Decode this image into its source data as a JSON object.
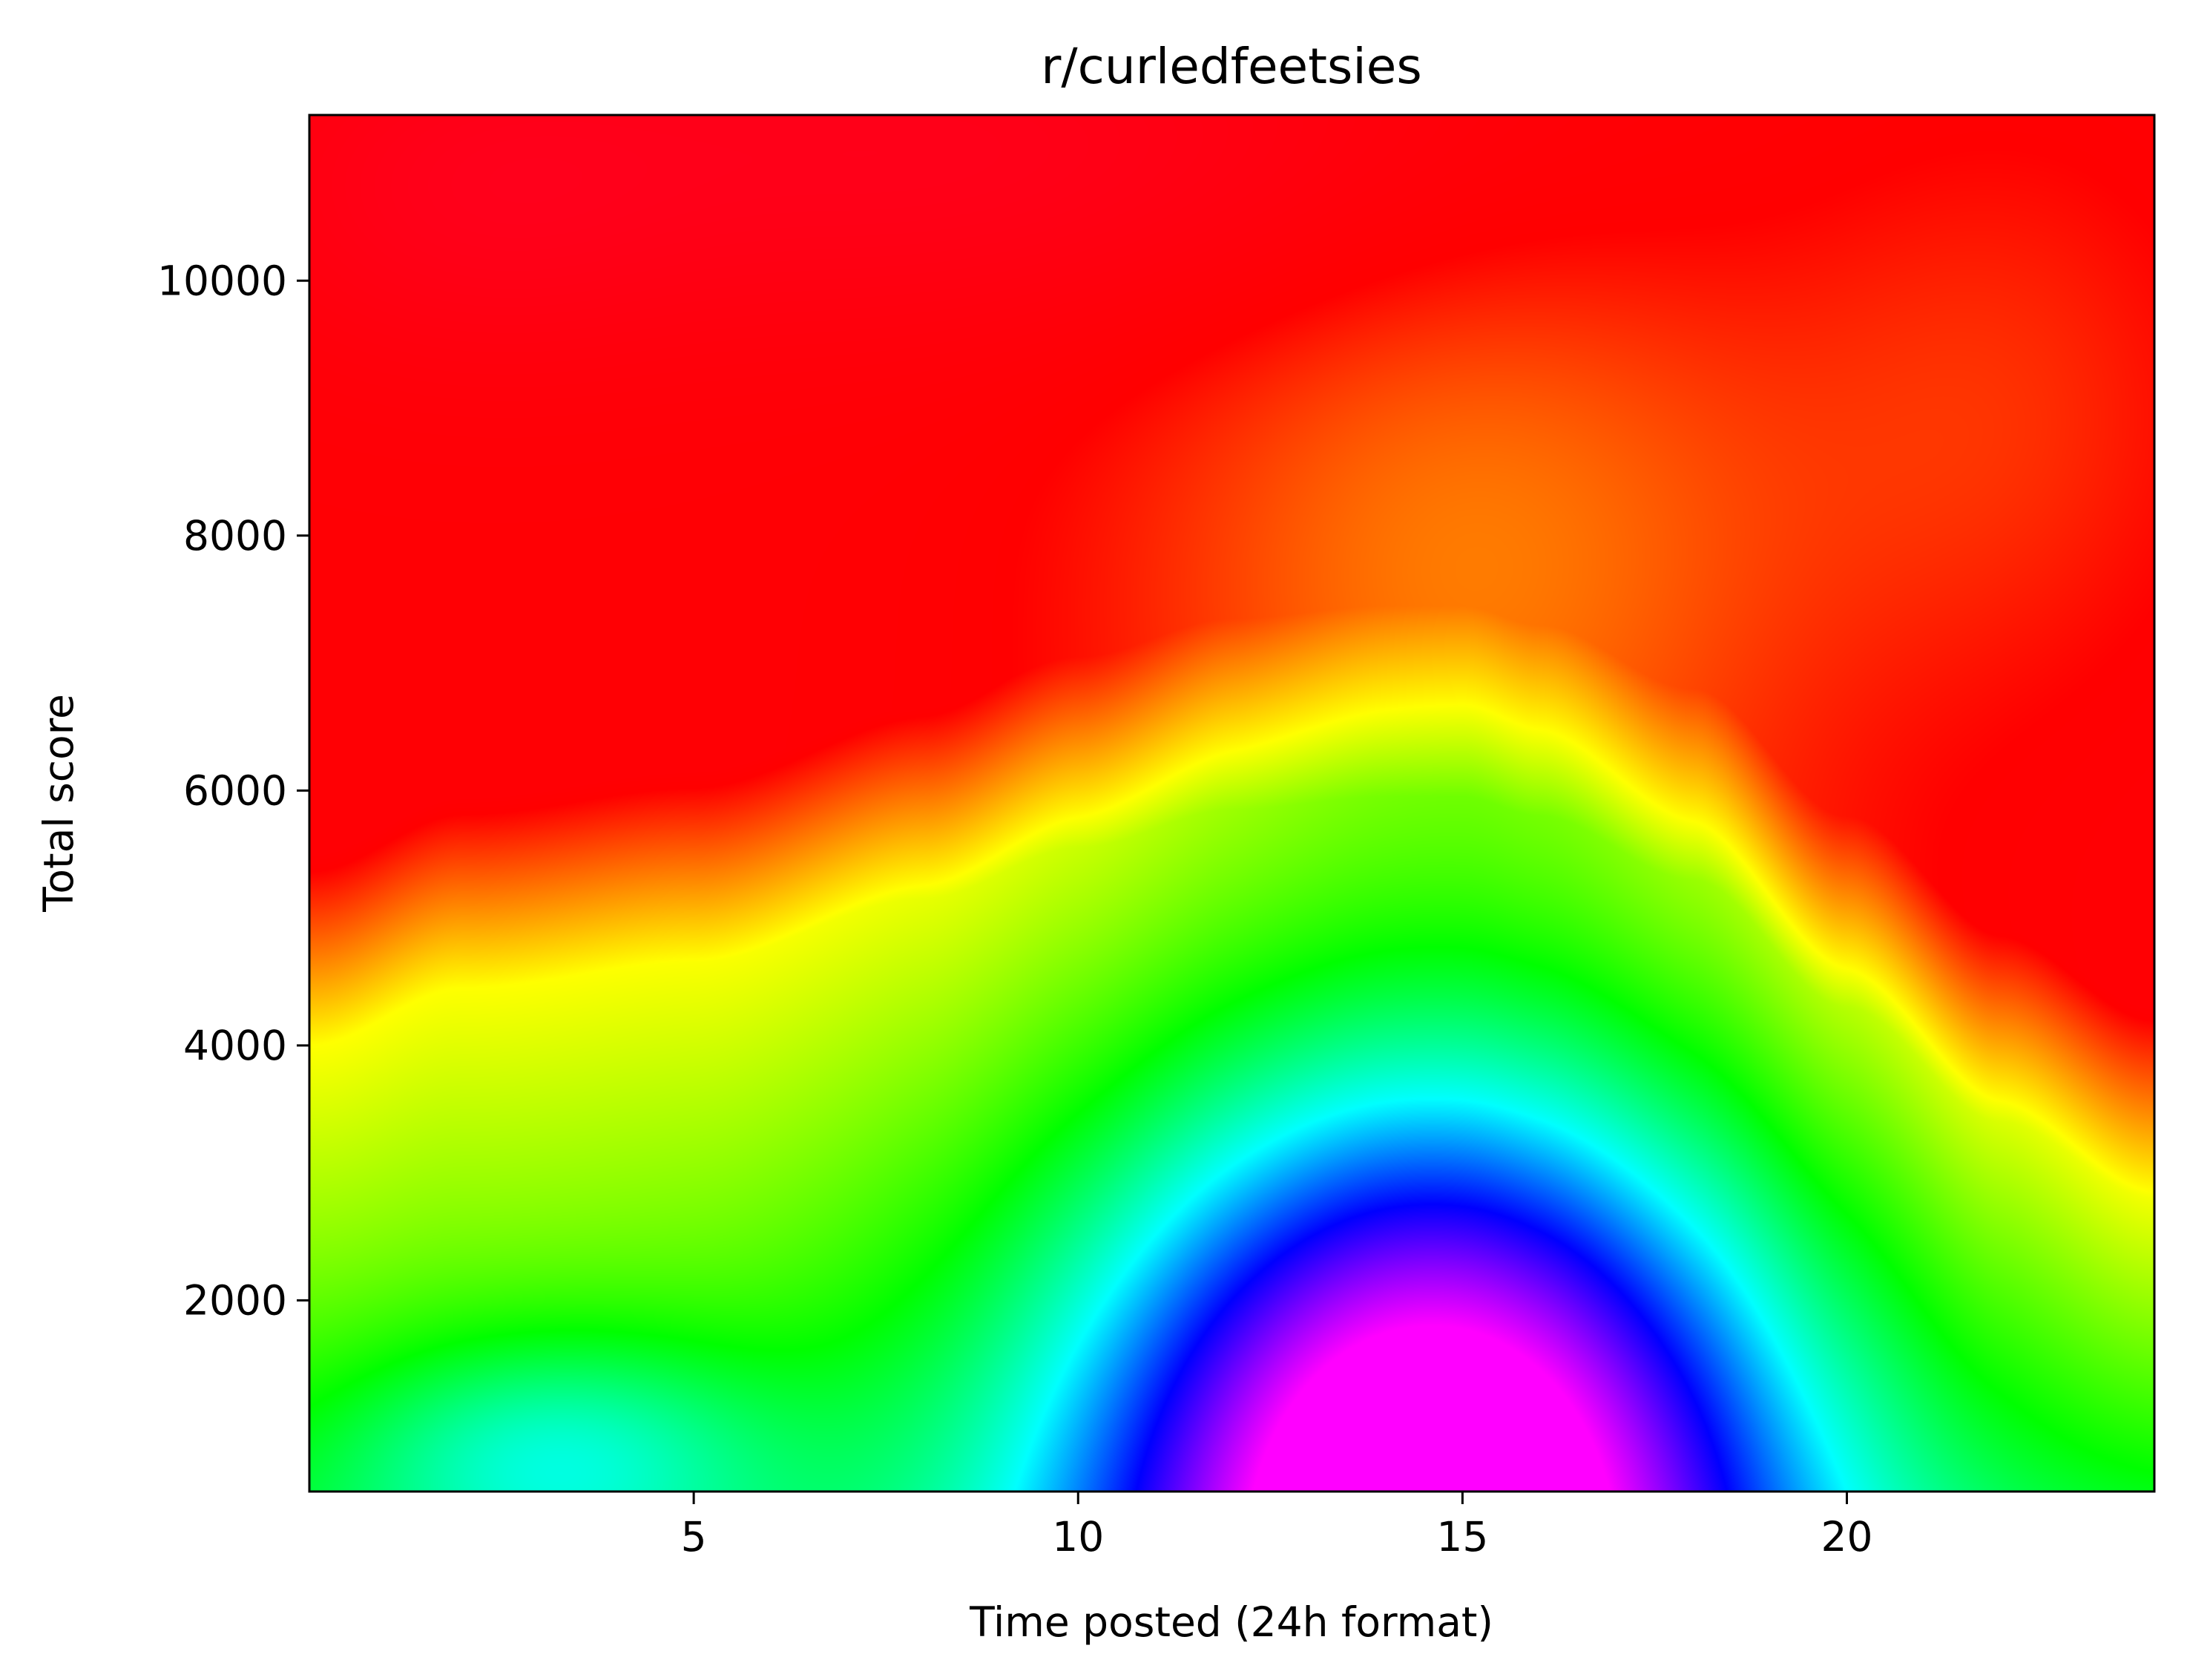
{
  "chart_data": {
    "type": "heatmap",
    "title": "r/curledfeetsies",
    "xlabel": "Time posted (24h format)",
    "ylabel": "Total score",
    "xlim": [
      0,
      24
    ],
    "ylim": [
      500,
      11300
    ],
    "x_ticks": [
      5,
      10,
      15,
      20
    ],
    "y_ticks": [
      2000,
      4000,
      6000,
      8000,
      10000
    ],
    "x_tick_labels": [
      "5",
      "10",
      "15",
      "20"
    ],
    "y_tick_labels": [
      "2000",
      "4000",
      "6000",
      "8000",
      "10000"
    ],
    "colormap": "gist_rainbow",
    "colormap_stops": [
      "#ff0029",
      "#ff0000",
      "#ffff00",
      "#00ff00",
      "#00ffff",
      "#0000ff",
      "#ff00ff"
    ],
    "grid": false,
    "legend": "none",
    "hotspots": [
      {
        "x": 14.5,
        "y": 1100,
        "color": "#ff00ff"
      },
      {
        "x": 3.2,
        "y": 900,
        "color": "#00ffff"
      }
    ],
    "contour_yellow_line": {
      "x": [
        0,
        2,
        5,
        8,
        10,
        12,
        14,
        15,
        16,
        18,
        20,
        22,
        24
      ],
      "y": [
        4000,
        4450,
        4650,
        5150,
        5550,
        5850,
        5950,
        5950,
        5800,
        5300,
        4300,
        3400,
        2800
      ]
    }
  }
}
